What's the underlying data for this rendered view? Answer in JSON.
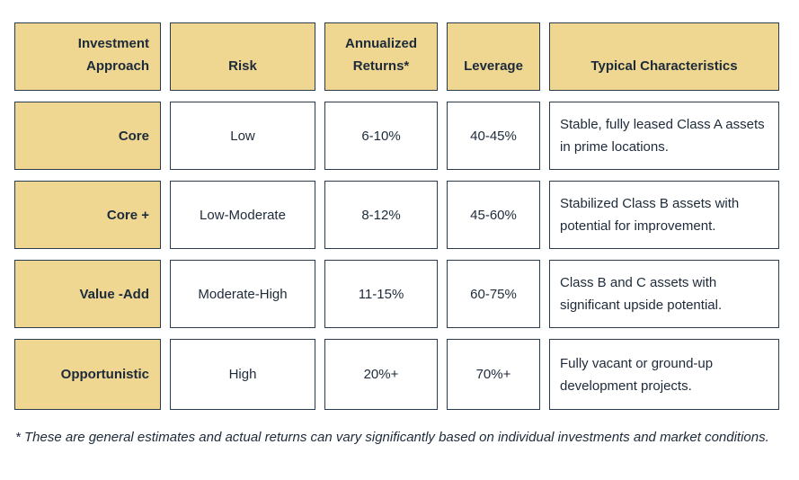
{
  "table": {
    "headers": [
      "Investment Approach",
      "Risk",
      "Annualized Returns*",
      "Leverage",
      "Typical Characteristics"
    ],
    "rows": [
      {
        "approach": "Core",
        "risk": "Low",
        "returns": "6-10%",
        "leverage": "40-45%",
        "characteristics": "Stable, fully leased Class A assets in prime locations."
      },
      {
        "approach": "Core +",
        "risk": "Low-Moderate",
        "returns": "8-12%",
        "leverage": "45-60%",
        "characteristics": "Stabilized Class B assets with potential for improvement."
      },
      {
        "approach": "Value -Add",
        "risk": "Moderate-High",
        "returns": "11-15%",
        "leverage": "60-75%",
        "characteristics": "Class B and C assets with significant upside potential."
      },
      {
        "approach": "Opportunistic",
        "risk": "High",
        "returns": "20%+",
        "leverage": "70%+",
        "characteristics": "Fully vacant or ground-up development projects."
      }
    ]
  },
  "footnote": "* These are general estimates and actual returns can vary significantly based on individual investments and market conditions.",
  "colors": {
    "header_fill": "#efd792",
    "border": "#2b3b4f",
    "text": "#1d2a3a"
  }
}
